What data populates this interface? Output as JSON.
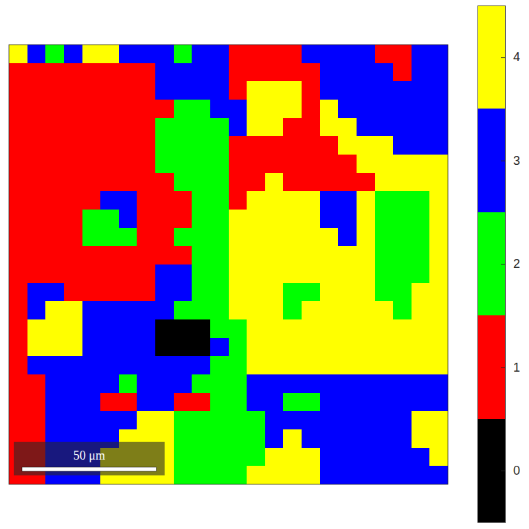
{
  "chart_data": {
    "type": "heatmap",
    "xlim": [
      0,
      163.3
    ],
    "ylim": [
      0,
      163.3
    ],
    "tick_labels": false,
    "cells": [
      [
        4,
        3,
        2,
        3,
        4,
        4,
        3,
        3,
        3,
        2,
        3,
        3,
        1,
        1,
        1,
        1,
        3,
        3,
        3,
        3,
        1,
        1,
        3,
        3
      ],
      [
        1,
        1,
        1,
        1,
        1,
        1,
        1,
        1,
        3,
        3,
        3,
        3,
        1,
        1,
        1,
        1,
        1,
        3,
        3,
        3,
        3,
        1,
        3,
        3
      ],
      [
        1,
        1,
        1,
        1,
        1,
        1,
        1,
        1,
        3,
        3,
        3,
        3,
        1,
        4,
        4,
        4,
        1,
        3,
        3,
        3,
        3,
        3,
        3,
        3
      ],
      [
        1,
        1,
        1,
        1,
        1,
        1,
        1,
        1,
        1,
        2,
        2,
        3,
        3,
        4,
        4,
        4,
        1,
        4,
        3,
        3,
        3,
        3,
        3,
        3
      ],
      [
        1,
        1,
        1,
        1,
        1,
        1,
        1,
        1,
        2,
        2,
        2,
        2,
        3,
        4,
        4,
        1,
        1,
        4,
        4,
        3,
        3,
        3,
        3,
        3
      ],
      [
        1,
        1,
        1,
        1,
        1,
        1,
        1,
        1,
        2,
        2,
        2,
        2,
        1,
        1,
        1,
        1,
        1,
        1,
        4,
        4,
        4,
        3,
        3,
        3
      ],
      [
        1,
        1,
        1,
        1,
        1,
        1,
        1,
        1,
        2,
        2,
        2,
        2,
        1,
        1,
        1,
        1,
        1,
        1,
        1,
        4,
        4,
        4,
        4,
        4
      ],
      [
        1,
        1,
        1,
        1,
        1,
        1,
        1,
        1,
        1,
        2,
        2,
        2,
        1,
        1,
        4,
        1,
        1,
        1,
        1,
        1,
        4,
        4,
        4,
        4
      ],
      [
        1,
        1,
        1,
        1,
        1,
        3,
        3,
        1,
        1,
        1,
        2,
        2,
        1,
        4,
        4,
        4,
        4,
        3,
        3,
        4,
        2,
        2,
        2,
        4
      ],
      [
        1,
        1,
        1,
        1,
        2,
        2,
        3,
        1,
        1,
        1,
        2,
        2,
        4,
        4,
        4,
        4,
        4,
        3,
        3,
        4,
        2,
        2,
        2,
        4
      ],
      [
        1,
        1,
        1,
        1,
        2,
        2,
        2,
        1,
        1,
        2,
        2,
        2,
        4,
        4,
        4,
        4,
        4,
        4,
        3,
        4,
        2,
        2,
        2,
        4
      ],
      [
        1,
        1,
        1,
        1,
        1,
        1,
        1,
        1,
        1,
        1,
        2,
        2,
        4,
        4,
        4,
        4,
        4,
        4,
        4,
        4,
        2,
        2,
        2,
        4
      ],
      [
        1,
        1,
        1,
        1,
        1,
        1,
        1,
        1,
        3,
        3,
        2,
        2,
        4,
        4,
        4,
        4,
        4,
        4,
        4,
        4,
        2,
        2,
        2,
        4
      ],
      [
        1,
        3,
        3,
        1,
        1,
        1,
        1,
        1,
        3,
        3,
        2,
        2,
        4,
        4,
        4,
        2,
        2,
        4,
        4,
        4,
        2,
        2,
        4,
        4
      ],
      [
        1,
        3,
        4,
        4,
        3,
        3,
        3,
        3,
        3,
        2,
        2,
        2,
        4,
        4,
        4,
        2,
        4,
        4,
        4,
        4,
        4,
        2,
        4,
        4
      ],
      [
        1,
        4,
        4,
        4,
        3,
        3,
        3,
        3,
        0,
        0,
        0,
        2,
        2,
        4,
        4,
        4,
        4,
        4,
        4,
        4,
        4,
        4,
        4,
        4
      ],
      [
        1,
        4,
        4,
        4,
        3,
        3,
        3,
        3,
        0,
        0,
        0,
        3,
        2,
        4,
        4,
        4,
        4,
        4,
        4,
        4,
        4,
        4,
        4,
        4
      ],
      [
        1,
        3,
        3,
        3,
        3,
        3,
        3,
        3,
        3,
        3,
        3,
        2,
        2,
        4,
        4,
        4,
        4,
        4,
        4,
        4,
        4,
        4,
        4,
        4
      ],
      [
        1,
        1,
        3,
        3,
        3,
        3,
        2,
        3,
        3,
        3,
        2,
        2,
        2,
        3,
        3,
        3,
        3,
        3,
        3,
        3,
        3,
        3,
        3,
        3
      ],
      [
        1,
        1,
        3,
        3,
        3,
        1,
        1,
        3,
        3,
        1,
        1,
        2,
        2,
        3,
        3,
        2,
        2,
        3,
        3,
        3,
        3,
        3,
        3,
        3
      ],
      [
        1,
        1,
        3,
        3,
        3,
        3,
        3,
        4,
        4,
        2,
        2,
        2,
        2,
        2,
        3,
        3,
        3,
        3,
        3,
        3,
        3,
        3,
        4,
        4
      ],
      [
        1,
        1,
        3,
        3,
        3,
        3,
        4,
        4,
        4,
        2,
        2,
        2,
        2,
        2,
        3,
        4,
        3,
        3,
        3,
        3,
        3,
        3,
        4,
        4
      ],
      [
        1,
        1,
        3,
        3,
        3,
        4,
        4,
        4,
        4,
        2,
        2,
        2,
        2,
        2,
        4,
        4,
        4,
        3,
        3,
        3,
        3,
        3,
        3,
        4
      ],
      [
        1,
        1,
        3,
        3,
        3,
        4,
        4,
        4,
        4,
        2,
        2,
        2,
        2,
        4,
        4,
        4,
        4,
        3,
        3,
        3,
        3,
        3,
        3,
        3
      ]
    ],
    "colorbar": {
      "range": [
        -0.5,
        4.5
      ],
      "ticks": [
        0,
        1,
        2,
        3,
        4
      ],
      "colors": [
        "#000000",
        "#ff0000",
        "#00ff00",
        "#0000ff",
        "#ffff00"
      ]
    },
    "scale_bar": {
      "length": 50,
      "label": "50 μm"
    }
  }
}
